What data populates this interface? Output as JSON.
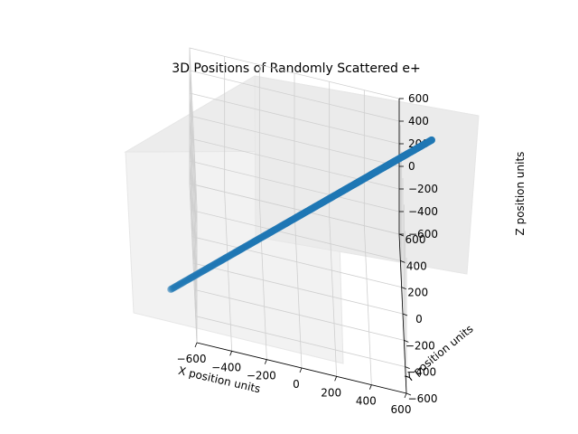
{
  "chart_data": {
    "type": "scatter",
    "projection": "3d",
    "title": "3D Positions of Randomly Scattered e+",
    "xlabel": "X position units",
    "ylabel": "Y position units",
    "zlabel": "Z position units",
    "xlim": [
      -600,
      600
    ],
    "ylim": [
      -600,
      600
    ],
    "zlim": [
      -600,
      600
    ],
    "xticks": [
      "−600",
      "−400",
      "−200",
      "0",
      "200",
      "400",
      "600"
    ],
    "yticks": [
      "−600",
      "−400",
      "−200",
      "0",
      "200",
      "400",
      "600"
    ],
    "zticks": [
      "−600",
      "−400",
      "−200",
      "0",
      "200",
      "400",
      "600"
    ],
    "grid": true,
    "color": "#1f77b4",
    "series": [
      {
        "points_description_range": [
          -600,
          600
        ],
        "x": [
          -580,
          -560,
          -540,
          -520,
          -500,
          -480,
          -460,
          -440,
          -420,
          -400,
          -380,
          -360,
          -340,
          -320,
          -300,
          -280,
          -260,
          -240,
          -220,
          -200,
          -180,
          -160,
          -140,
          -120,
          -100,
          -80,
          -60,
          -40,
          -20,
          0,
          20,
          40,
          60,
          80,
          100,
          120,
          140,
          160,
          180,
          200,
          220,
          240,
          260,
          280,
          300,
          320,
          340,
          360,
          380,
          400,
          420,
          440,
          460,
          480,
          500,
          520,
          540,
          560,
          580
        ],
        "y": [
          -580,
          -560,
          -540,
          -520,
          -500,
          -480,
          -460,
          -440,
          -420,
          -400,
          -380,
          -360,
          -340,
          -320,
          -300,
          -280,
          -260,
          -240,
          -220,
          -200,
          -180,
          -160,
          -140,
          -120,
          -100,
          -80,
          -60,
          -40,
          -20,
          0,
          20,
          40,
          60,
          80,
          100,
          120,
          140,
          160,
          180,
          200,
          220,
          240,
          260,
          280,
          300,
          320,
          340,
          360,
          380,
          400,
          420,
          440,
          460,
          480,
          500,
          520,
          540,
          560,
          580
        ],
        "z": [
          -580,
          -560,
          -540,
          -520,
          -500,
          -480,
          -460,
          -440,
          -420,
          -400,
          -380,
          -360,
          -340,
          -320,
          -300,
          -280,
          -260,
          -240,
          -220,
          -200,
          -180,
          -160,
          -140,
          -120,
          -100,
          -80,
          -60,
          -40,
          -20,
          0,
          20,
          40,
          60,
          80,
          100,
          120,
          140,
          160,
          180,
          200,
          220,
          240,
          260,
          280,
          300,
          320,
          340,
          360,
          380,
          400,
          420,
          440,
          460,
          480,
          500,
          520,
          540,
          560,
          580
        ]
      }
    ]
  }
}
